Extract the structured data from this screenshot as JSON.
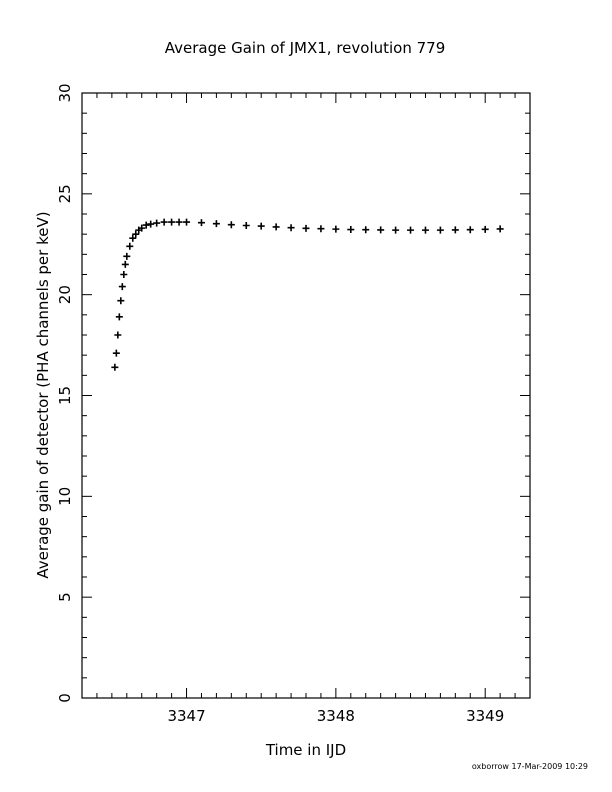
{
  "chart_data": {
    "type": "scatter",
    "title": "Average Gain of JMX1, revolution 779",
    "xlabel": "Time in IJD",
    "ylabel": "Average gain of detector (PHA channels per keV)",
    "xlim": [
      3346.3,
      3349.3
    ],
    "ylim": [
      0,
      30
    ],
    "x_ticks": [
      "3347",
      "3348",
      "3349"
    ],
    "y_ticks": [
      "0",
      "5",
      "10",
      "15",
      "20",
      "25",
      "30"
    ],
    "marker": "plus",
    "grid": false,
    "series": [
      {
        "x": [
          3346.52,
          3346.53,
          3346.54,
          3346.55,
          3346.56,
          3346.57,
          3346.58,
          3346.59,
          3346.6,
          3346.62,
          3346.64,
          3346.66,
          3346.68,
          3346.7,
          3346.73,
          3346.76,
          3346.8,
          3346.85,
          3346.9,
          3346.95,
          3347.0,
          3347.1,
          3347.2,
          3347.3,
          3347.4,
          3347.5,
          3347.6,
          3347.7,
          3347.8,
          3347.9,
          3348.0,
          3348.1,
          3348.2,
          3348.3,
          3348.4,
          3348.5,
          3348.6,
          3348.7,
          3348.8,
          3348.9,
          3349.0,
          3349.1
        ],
        "y": [
          16.4,
          17.1,
          18.0,
          18.9,
          19.7,
          20.4,
          21.0,
          21.5,
          21.9,
          22.4,
          22.8,
          23.0,
          23.2,
          23.3,
          23.45,
          23.5,
          23.55,
          23.6,
          23.6,
          23.6,
          23.6,
          23.57,
          23.52,
          23.47,
          23.43,
          23.4,
          23.36,
          23.32,
          23.29,
          23.27,
          23.25,
          23.23,
          23.22,
          23.21,
          23.2,
          23.2,
          23.2,
          23.2,
          23.21,
          23.22,
          23.24,
          23.26
        ]
      }
    ]
  },
  "footer": {
    "stamp": "oxborrow 17-Mar-2009 10:29"
  }
}
